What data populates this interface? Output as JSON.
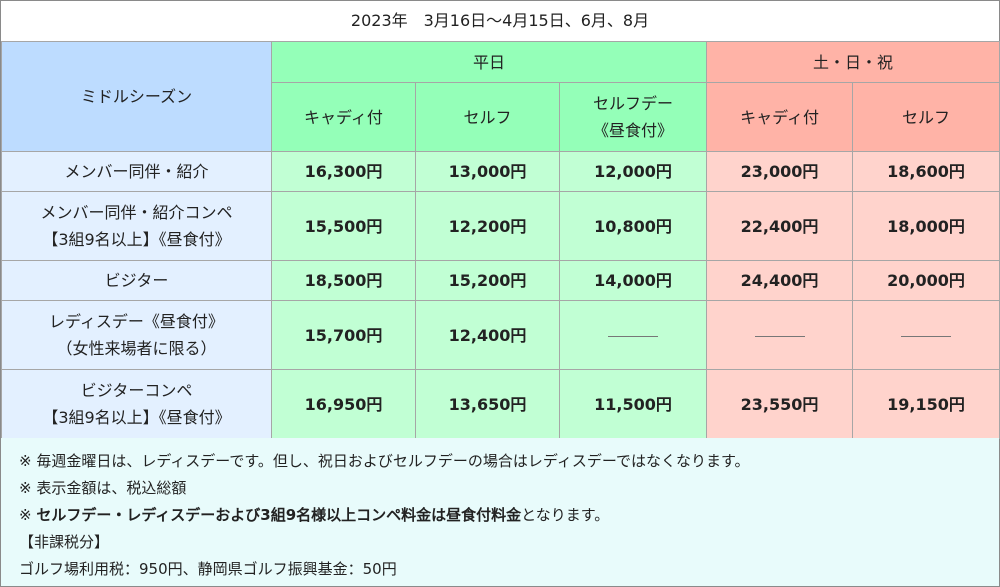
{
  "title": "2023年　3月16日～4月15日、6月、8月",
  "header": {
    "season": "ミドルシーズン",
    "weekday": "平日",
    "weekend": "土・日・祝",
    "cols": {
      "wd_caddie": "キャディ付",
      "wd_self": "セルフ",
      "wd_selfday_1": "セルフデー",
      "wd_selfday_2": "《昼食付》",
      "we_caddie": "キャディ付",
      "we_self": "セルフ"
    }
  },
  "rows": [
    {
      "label1": "メンバー同伴・紹介",
      "label2": "",
      "v1": "16,300円",
      "v2": "13,000円",
      "v3": "12,000円",
      "v4": "23,000円",
      "v5": "18,600円"
    },
    {
      "label1": "メンバー同伴・紹介コンペ",
      "label2": "【3組9名以上】《昼食付》",
      "v1": "15,500円",
      "v2": "12,200円",
      "v3": "10,800円",
      "v4": "22,400円",
      "v5": "18,000円"
    },
    {
      "label1": "ビジター",
      "label2": "",
      "v1": "18,500円",
      "v2": "15,200円",
      "v3": "14,000円",
      "v4": "24,400円",
      "v5": "20,000円"
    },
    {
      "label1": "レディスデー《昼食付》",
      "label2": "（女性来場者に限る）",
      "v1": "15,700円",
      "v2": "12,400円",
      "v3": "",
      "v4": "",
      "v5": ""
    },
    {
      "label1": "ビジターコンペ",
      "label2": "【3組9名以上】《昼食付》",
      "v1": "16,950円",
      "v2": "13,650円",
      "v3": "11,500円",
      "v4": "23,550円",
      "v5": "19,150円"
    }
  ],
  "notes": {
    "n1": "※ 毎週金曜日は、レディスデーです。但し、祝日およびセルフデーの場合はレディスデーではなくなります。",
    "n2": "※ 表示金額は、税込総額",
    "n3_prefix": "※ ",
    "n3_bold": "セルフデー・レディスデーおよび3組9名様以上コンペ料金は昼食付料金",
    "n3_suffix": "となります。",
    "n4": "【非課税分】",
    "n5": "ゴルフ場利用税：950円、静岡県ゴルフ振興基金：50円"
  }
}
